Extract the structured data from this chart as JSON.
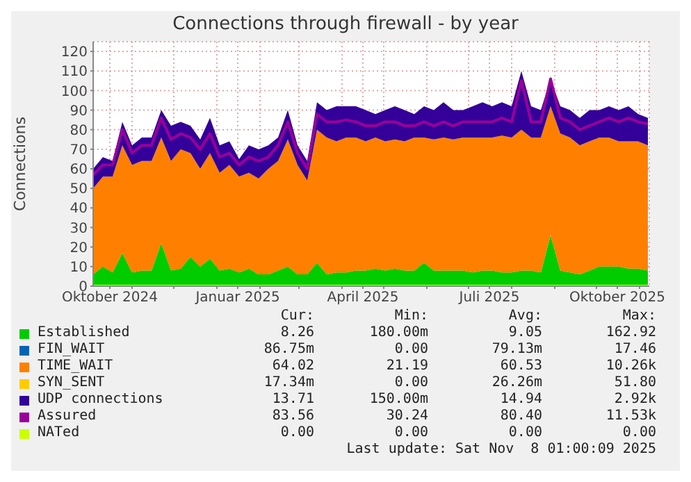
{
  "chart_data": {
    "type": "area",
    "title": "Connections through firewall - by year",
    "ylabel": "Connections",
    "stacked": true,
    "grid": true,
    "legend": "bottom",
    "x": [
      "2024-10-04",
      "2024-10-11",
      "2024-10-18",
      "2024-10-25",
      "2024-11-01",
      "2024-11-08",
      "2024-11-15",
      "2024-11-22",
      "2024-11-29",
      "2024-12-06",
      "2024-12-13",
      "2024-12-20",
      "2024-12-27",
      "2025-01-03",
      "2025-01-10",
      "2025-01-17",
      "2025-01-24",
      "2025-01-31",
      "2025-02-07",
      "2025-02-14",
      "2025-02-21",
      "2025-02-28",
      "2025-03-07",
      "2025-03-14",
      "2025-03-21",
      "2025-03-28",
      "2025-04-04",
      "2025-04-11",
      "2025-04-18",
      "2025-04-25",
      "2025-05-02",
      "2025-05-09",
      "2025-05-16",
      "2025-05-23",
      "2025-05-30",
      "2025-06-06",
      "2025-06-13",
      "2025-06-20",
      "2025-06-27",
      "2025-07-04",
      "2025-07-11",
      "2025-07-18",
      "2025-07-25",
      "2025-08-01",
      "2025-08-08",
      "2025-08-15",
      "2025-08-22",
      "2025-08-29",
      "2025-09-05",
      "2025-09-12",
      "2025-09-19",
      "2025-09-26",
      "2025-10-03",
      "2025-10-10",
      "2025-10-17",
      "2025-10-24",
      "2025-10-31",
      "2025-11-07"
    ],
    "xlim": [
      "2024-10-04",
      "2025-11-08"
    ],
    "xticks": [
      {
        "value": "2024-10-16",
        "label": "Oktober 2024"
      },
      {
        "value": "2024-11-01",
        "label": null
      },
      {
        "value": "2024-12-01",
        "label": null
      },
      {
        "value": "2025-01-01",
        "label": null
      },
      {
        "value": "2025-01-16",
        "label": "Januar 2025"
      },
      {
        "value": "2025-02-01",
        "label": null
      },
      {
        "value": "2025-03-01",
        "label": null
      },
      {
        "value": "2025-04-01",
        "label": null
      },
      {
        "value": "2025-04-16",
        "label": "April 2025"
      },
      {
        "value": "2025-05-01",
        "label": null
      },
      {
        "value": "2025-06-01",
        "label": null
      },
      {
        "value": "2025-07-01",
        "label": null
      },
      {
        "value": "2025-07-16",
        "label": "Juli 2025"
      },
      {
        "value": "2025-08-01",
        "label": null
      },
      {
        "value": "2025-09-01",
        "label": null
      },
      {
        "value": "2025-10-01",
        "label": null
      },
      {
        "value": "2025-10-16",
        "label": "Oktober 2025"
      },
      {
        "value": "2025-11-01",
        "label": null
      }
    ],
    "ylim": [
      0,
      125
    ],
    "yticks": [
      0,
      10,
      20,
      30,
      40,
      50,
      60,
      70,
      80,
      90,
      100,
      110,
      120
    ],
    "series": [
      {
        "name": "Established",
        "color": "#00cc00",
        "values": [
          6,
          10,
          7,
          17,
          7,
          8,
          8,
          22,
          8,
          9,
          15,
          10,
          14,
          8,
          9,
          7,
          9,
          6,
          6,
          8,
          10,
          6,
          6,
          12,
          6,
          7,
          7,
          8,
          8,
          9,
          8,
          9,
          8,
          8,
          12,
          8,
          8,
          8,
          8,
          7,
          8,
          8,
          7,
          7,
          8,
          8,
          7,
          26,
          8,
          7,
          6,
          8,
          10,
          10,
          10,
          9,
          9,
          8
        ]
      },
      {
        "name": "FIN_WAIT",
        "color": "#0066b3",
        "values": [
          null,
          null,
          null,
          null,
          null,
          null,
          null,
          null,
          null,
          null,
          null,
          null,
          null,
          null,
          null,
          null,
          null,
          null,
          null,
          null,
          null,
          null,
          null,
          null,
          null,
          null,
          null,
          null,
          null,
          null,
          null,
          null,
          null,
          null,
          null,
          null,
          null,
          null,
          null,
          null,
          null,
          null,
          null,
          null,
          null,
          null,
          null,
          null,
          null,
          null,
          null,
          null,
          null,
          null,
          null,
          null,
          null,
          null
        ]
      },
      {
        "name": "TIME_WAIT",
        "color": "#ff8000",
        "values": [
          44,
          46,
          49,
          55,
          55,
          56,
          56,
          54,
          56,
          61,
          53,
          50,
          54,
          50,
          53,
          49,
          49,
          49,
          54,
          56,
          65,
          56,
          48,
          68,
          70,
          67,
          69,
          68,
          66,
          67,
          66,
          66,
          66,
          68,
          64,
          67,
          68,
          67,
          68,
          69,
          68,
          68,
          70,
          69,
          72,
          68,
          69,
          66,
          70,
          69,
          66,
          66,
          66,
          66,
          64,
          65,
          65,
          64
        ]
      },
      {
        "name": "SYN_SENT",
        "color": "#ffcc00",
        "values": [
          null,
          null,
          null,
          null,
          null,
          null,
          null,
          null,
          null,
          null,
          null,
          null,
          null,
          null,
          null,
          null,
          null,
          null,
          null,
          null,
          null,
          null,
          null,
          null,
          null,
          null,
          null,
          null,
          null,
          null,
          null,
          null,
          null,
          null,
          null,
          null,
          null,
          null,
          null,
          null,
          null,
          null,
          null,
          null,
          null,
          null,
          null,
          null,
          null,
          null,
          null,
          null,
          null,
          null,
          null,
          null,
          null,
          null
        ]
      },
      {
        "name": "UDP connections",
        "color": "#330099",
        "values": [
          10,
          10,
          8,
          12,
          10,
          12,
          12,
          14,
          18,
          14,
          14,
          15,
          18,
          14,
          12,
          9,
          14,
          15,
          12,
          12,
          15,
          10,
          10,
          14,
          14,
          18,
          16,
          16,
          16,
          12,
          16,
          17,
          16,
          12,
          16,
          15,
          18,
          15,
          14,
          16,
          18,
          16,
          17,
          16,
          30,
          16,
          14,
          14,
          14,
          14,
          14,
          16,
          14,
          16,
          16,
          18,
          14,
          14
        ]
      },
      {
        "name": "Assured",
        "type": "line",
        "color": "#990099",
        "values": [
          57,
          62,
          62,
          80,
          68,
          72,
          72,
          86,
          75,
          78,
          76,
          70,
          78,
          66,
          68,
          62,
          66,
          64,
          66,
          72,
          84,
          68,
          60,
          88,
          84,
          84,
          85,
          84,
          82,
          82,
          84,
          84,
          82,
          82,
          84,
          82,
          84,
          82,
          84,
          84,
          84,
          84,
          86,
          84,
          105,
          84,
          84,
          106,
          86,
          84,
          80,
          82,
          84,
          86,
          84,
          86,
          84,
          83
        ]
      },
      {
        "name": "NATed",
        "type": "line",
        "color": "#ccff00",
        "values": [
          0,
          0,
          0,
          0,
          0,
          0,
          0,
          0,
          0,
          0,
          0,
          0,
          0,
          0,
          0,
          0,
          0,
          0,
          0,
          0,
          0,
          0,
          0,
          0,
          0,
          0,
          0,
          0,
          0,
          0,
          0,
          0,
          0,
          0,
          0,
          0,
          0,
          0,
          0,
          0,
          0,
          0,
          0,
          0,
          0,
          0,
          0,
          0,
          0,
          0,
          0,
          0,
          0,
          0,
          0,
          0,
          0,
          0
        ]
      }
    ],
    "annotations": [
      "Cur:",
      "Min:",
      "Avg:",
      "Max:",
      "8.26",
      "180.00m",
      "9.05",
      "162.92",
      "86.75m",
      "0.00",
      "79.13m",
      "17.46",
      "64.02",
      "21.19",
      "60.53",
      "10.26k",
      "17.34m",
      "0.00",
      "26.26m",
      "51.80",
      "13.71",
      "150.00m",
      "14.94",
      "2.92k",
      "83.56",
      "30.24",
      "80.40",
      "11.53k",
      "0.00",
      "0.00",
      "0.00",
      "0.00",
      "Last update: Sat Nov  8 01:00:09 2025"
    ]
  }
}
